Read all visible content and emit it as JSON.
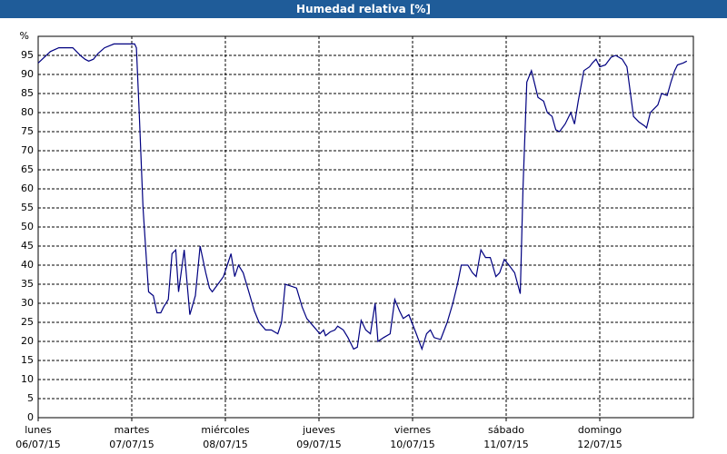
{
  "chart_data": {
    "type": "line",
    "title": "Humedad relativa [%]",
    "xlim": [
      0,
      7
    ],
    "ylim": [
      0,
      100
    ],
    "yticks": [
      0,
      5,
      10,
      15,
      20,
      25,
      30,
      35,
      40,
      45,
      50,
      55,
      60,
      65,
      70,
      75,
      80,
      85,
      90,
      95,
      {
        "value": 100,
        "label": "%"
      }
    ],
    "xticks": [
      {
        "value": 0,
        "label": [
          "lunes",
          "06/07/15"
        ]
      },
      {
        "value": 1,
        "label": [
          "martes",
          "07/07/15"
        ]
      },
      {
        "value": 2,
        "label": [
          "miércoles",
          "08/07/15"
        ]
      },
      {
        "value": 3,
        "label": [
          "jueves",
          "09/07/15"
        ]
      },
      {
        "value": 4,
        "label": [
          "viernes",
          "10/07/15"
        ]
      },
      {
        "value": 5,
        "label": [
          "sábado",
          "11/07/15"
        ]
      },
      {
        "value": 6,
        "label": [
          "domingo",
          "12/07/15"
        ]
      }
    ],
    "grid": true,
    "series": [
      {
        "name": "Humedad relativa",
        "color": "#000080",
        "x": [
          0,
          0.13,
          0.22,
          0.37,
          0.45,
          0.5,
          0.54,
          0.59,
          0.64,
          0.71,
          0.81,
          1.03,
          1.05,
          1.08,
          1.12,
          1.16,
          1.18,
          1.23,
          1.27,
          1.31,
          1.34,
          1.39,
          1.43,
          1.47,
          1.5,
          1.56,
          1.62,
          1.68,
          1.73,
          1.79,
          1.83,
          1.86,
          1.92,
          1.98,
          2.02,
          2.06,
          2.1,
          2.14,
          2.19,
          2.25,
          2.31,
          2.36,
          2.43,
          2.49,
          2.56,
          2.6,
          2.64,
          2.7,
          2.76,
          2.82,
          2.87,
          2.94,
          3.01,
          3.05,
          3.07,
          3.12,
          3.17,
          3.2,
          3.26,
          3.31,
          3.37,
          3.41,
          3.45,
          3.5,
          3.55,
          3.6,
          3.63,
          3.69,
          3.76,
          3.81,
          3.86,
          3.9,
          3.96,
          4.04,
          4.1,
          4.15,
          4.19,
          4.23,
          4.3,
          4.37,
          4.43,
          4.48,
          4.52,
          4.59,
          4.64,
          4.68,
          4.73,
          4.78,
          4.83,
          4.89,
          4.93,
          4.98,
          5.03,
          5.09,
          5.15,
          5.18,
          5.22,
          5.27,
          5.34,
          5.4,
          5.44,
          5.49,
          5.53,
          5.57,
          5.63,
          5.69,
          5.73,
          5.77,
          5.83,
          5.89,
          5.92,
          5.96,
          6.0,
          6.06,
          6.12,
          6.17,
          6.24,
          6.29,
          6.36,
          6.42,
          6.48,
          6.5,
          6.54,
          6.58,
          6.62,
          6.66,
          6.72,
          6.76,
          6.8,
          6.83,
          6.89,
          6.93
        ],
        "values": [
          93,
          96,
          97,
          97,
          95,
          94,
          93.5,
          94,
          95.5,
          97,
          98,
          98,
          97,
          80,
          55,
          40,
          33,
          32,
          27.5,
          27.5,
          29,
          31,
          43,
          44,
          33,
          44,
          27,
          32,
          45,
          38,
          34,
          33,
          35,
          37,
          40,
          43,
          37,
          40,
          38,
          33,
          28,
          25,
          23,
          23,
          22,
          25,
          35,
          34.5,
          34,
          29,
          26,
          24,
          22,
          23,
          21.5,
          22.5,
          23,
          24,
          23,
          21,
          18,
          18.5,
          25.5,
          23,
          22,
          30,
          20,
          21,
          22,
          31,
          28,
          26,
          27,
          22,
          18,
          22,
          23,
          21,
          20.5,
          25,
          30,
          35,
          40,
          40,
          38,
          37,
          44,
          42,
          42,
          37,
          38,
          41.5,
          40,
          38,
          32.5,
          60,
          88,
          91,
          84,
          83,
          80,
          79,
          75.5,
          75,
          77,
          80,
          77,
          83,
          91,
          92,
          93,
          94,
          92,
          92.5,
          94.5,
          95,
          94,
          92,
          79,
          77.5,
          76.5,
          76,
          80,
          81,
          82,
          85,
          84.5,
          88,
          91,
          92.5,
          93,
          93.5
        ]
      }
    ]
  }
}
